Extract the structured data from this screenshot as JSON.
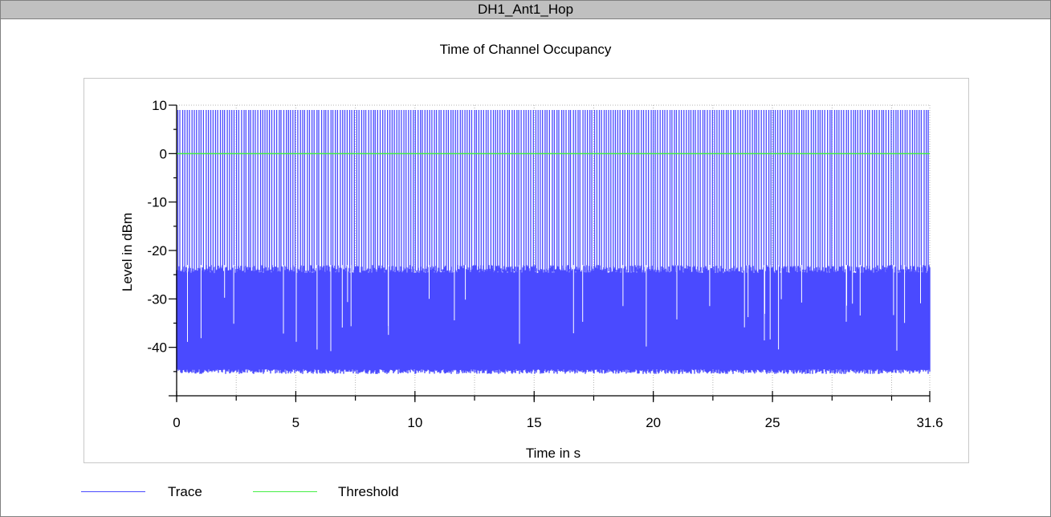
{
  "window": {
    "title": "DH1_Ant1_Hop"
  },
  "colors": {
    "trace": "#4a4aff",
    "threshold": "#44ee44",
    "grid": "#b4b4b4",
    "axis": "#000000"
  },
  "chart_data": {
    "type": "line",
    "title": "Time of Channel Occupancy",
    "xlabel": "Time in s",
    "ylabel": "Level in dBm",
    "xlim": [
      0,
      31.6
    ],
    "ylim": [
      -50,
      10
    ],
    "xticks": [
      "0",
      "5",
      "10",
      "15",
      "20",
      "25",
      "31.6"
    ],
    "xtick_values": [
      0,
      5,
      10,
      15,
      20,
      25,
      31.6
    ],
    "yticks": [
      "10",
      "0",
      "-10",
      "-20",
      "-30",
      "-40"
    ],
    "ytick_values": [
      10,
      0,
      -10,
      -20,
      -30,
      -40
    ],
    "grid": true,
    "legend_position": "bottom-left",
    "series": [
      {
        "name": "Trace",
        "style": "hopping-bursts",
        "on_level": 9,
        "off_level_range": [
          -45,
          -23
        ],
        "burst_count": 320,
        "color_key": "trace"
      },
      {
        "name": "Threshold",
        "style": "horizontal",
        "value": 0,
        "color_key": "threshold"
      }
    ]
  }
}
